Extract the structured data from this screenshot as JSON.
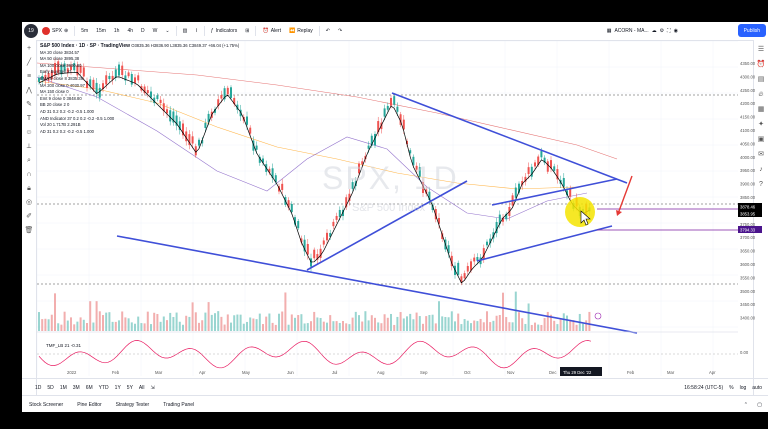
{
  "topbar": {
    "logo_text": "19",
    "symbol": "SPX",
    "intervals": [
      "5m",
      "15m",
      "1h",
      "4h",
      "D",
      "W"
    ],
    "indicators_label": "Indicators",
    "alert_label": "Alert",
    "replay_label": "Replay",
    "layout_name": "ACORN - MA...",
    "publish_label": "Publish"
  },
  "legend": {
    "title": "S&P 500 Index · 1D · SP · TradingView",
    "ohlc": "O3835.36 H3836.90 L3835.36 C3849.37 +66.04 (+1.75%)",
    "rows": [
      "MA 20 close  3834.57",
      "MA 50 close  3895.38",
      "MA 100 close  3900.80",
      "Early Buy/Sell 21",
      "EMA 9 close 8  3835.36",
      "MA 200 close 0  4030.97",
      "MA 150 close 0",
      "Emt 9 close 0  3848.80",
      "BB 20 close 2 0",
      "AD 31 0.2 0.2 -0.2 -0.5 1.000",
      "AND Indicator 37 0.2 0.2 -0.2 -0.5 1.000",
      "Vol 20   1.717B  2.291B",
      "AD 31 0.2 0.2 -0.2 -0.5 1.000"
    ]
  },
  "watermark": {
    "symbol": "SPX, 1D",
    "name": "S&P 500 Index"
  },
  "price_axis": {
    "labels": [
      "4350.00",
      "4300.00",
      "4250.00",
      "4200.00",
      "4150.00",
      "4100.00",
      "4050.00",
      "4000.00",
      "3950.00",
      "3900.00",
      "3850.00",
      "3800.00",
      "3750.00",
      "3700.00",
      "3650.00",
      "3600.00",
      "3550.00",
      "3500.00",
      "3450.00",
      "3400.00"
    ],
    "tag1": "3878.46",
    "tag2": "3853.95",
    "tag3": "3794.33",
    "tsi_label": "0.00"
  },
  "time_axis": {
    "labels": [
      "2022",
      "Feb",
      "Mar",
      "Apr",
      "May",
      "Jun",
      "Jul",
      "Aug",
      "Sep",
      "Oct",
      "Nov",
      "Dec",
      "Feb",
      "Mar",
      "Apr"
    ],
    "cursor_date": "Thu 29 Dec '22"
  },
  "tsi": {
    "label": "TMF_LB 21  -0.31"
  },
  "bottombar": {
    "ranges": [
      "1D",
      "5D",
      "1M",
      "3M",
      "6M",
      "YTD",
      "1Y",
      "5Y",
      "All"
    ],
    "time": "16:58:24 (UTC-5)",
    "pct": "%",
    "log": "log",
    "auto": "auto"
  },
  "footer": {
    "tabs": [
      "Stock Screener",
      "Pine Editor",
      "Strategy Tester",
      "Trading Panel"
    ]
  },
  "colors": {
    "trendline": "#3f4fd8",
    "up": "#26a69a",
    "down": "#ef5350",
    "highlight": "#f5e400",
    "annotation": "#e53935",
    "purple_line": "#7b1fa2"
  }
}
